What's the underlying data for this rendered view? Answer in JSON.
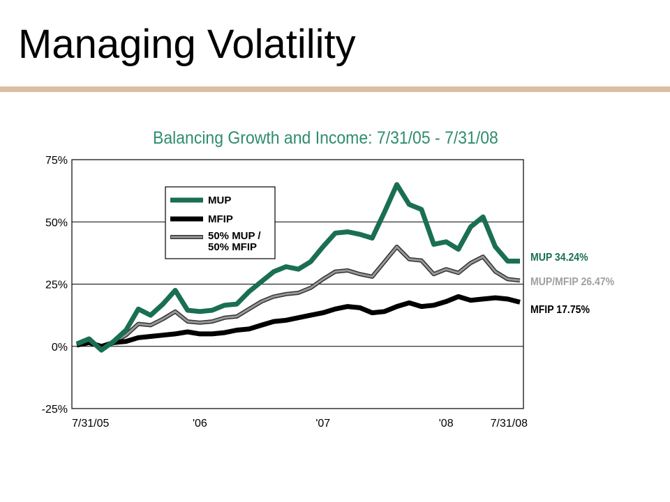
{
  "slide": {
    "title": "Managing Volatility"
  },
  "colors": {
    "accent_rule": "#dcbfa0",
    "chart_title": "#2e8c6e",
    "mup": "#1a6f52",
    "mfip": "#000000",
    "blend": "#999999"
  },
  "chart_data": {
    "type": "line",
    "title": "Balancing Growth and Income: 7/31/05  - 7/31/08",
    "xlabel": "",
    "ylabel": "",
    "ylim": [
      -25,
      75
    ],
    "xlim": [
      0,
      36
    ],
    "grid": true,
    "legend_position": "top-left",
    "x_ticks": [
      {
        "x": 0,
        "label": "7/31/05"
      },
      {
        "x": 10,
        "label": "'06"
      },
      {
        "x": 20,
        "label": "'07"
      },
      {
        "x": 30,
        "label": "'08"
      },
      {
        "x": 36,
        "label": "7/31/08"
      }
    ],
    "y_ticks": [
      {
        "y": 75,
        "label": "75%"
      },
      {
        "y": 50,
        "label": "50%"
      },
      {
        "y": 25,
        "label": "25%"
      },
      {
        "y": 0,
        "label": "0%"
      },
      {
        "y": -25,
        "label": "-25%"
      }
    ],
    "x": [
      0,
      1,
      2,
      3,
      4,
      5,
      6,
      7,
      8,
      9,
      10,
      11,
      12,
      13,
      14,
      15,
      16,
      17,
      18,
      19,
      20,
      21,
      22,
      23,
      24,
      25,
      26,
      27,
      28,
      29,
      30,
      31,
      32,
      33,
      34,
      35,
      36
    ],
    "series": [
      {
        "name": "MUP",
        "legend_label": "MUP",
        "end_label": "MUP 34.24%",
        "color": "#1a6f52",
        "width": 7,
        "values": [
          1,
          3,
          -1.5,
          2,
          6.5,
          15,
          12.5,
          17,
          22.5,
          14.5,
          14,
          14.5,
          16.5,
          17,
          22,
          26,
          30,
          32,
          31,
          34,
          40,
          45.5,
          46,
          45,
          43.5,
          54,
          65,
          57,
          55,
          41,
          42,
          39,
          48,
          52,
          40,
          34.24,
          34.24
        ]
      },
      {
        "name": "MFIP",
        "legend_label": "MFIP",
        "end_label": "MFIP 17.75%",
        "color": "#000000",
        "width": 7,
        "values": [
          0.5,
          1.5,
          0,
          1.5,
          2,
          3.5,
          4,
          4.5,
          5,
          5.8,
          5,
          5,
          5.5,
          6.5,
          7,
          8.5,
          10,
          10.5,
          11.5,
          12.5,
          13.5,
          15,
          16,
          15.5,
          13.5,
          14,
          16,
          17.5,
          16,
          16.5,
          18,
          20,
          18.5,
          19,
          19.5,
          19,
          17.75
        ]
      },
      {
        "name": "50% MUP / 50% MFIP",
        "legend_label": [
          "50% MUP /",
          "50% MFIP"
        ],
        "end_label": "MUP/MFIP 26.47%",
        "color": "#999999",
        "width": 4,
        "values": [
          0.8,
          2.2,
          -0.8,
          1.8,
          4.5,
          9,
          8.5,
          11,
          14,
          10,
          9.5,
          10,
          11.5,
          12,
          15,
          18,
          20,
          21,
          21.5,
          23.5,
          27,
          30,
          30.5,
          29,
          28,
          34,
          40,
          35,
          34.5,
          29,
          31,
          29.5,
          33.5,
          36,
          30,
          27,
          26.47
        ]
      }
    ]
  }
}
